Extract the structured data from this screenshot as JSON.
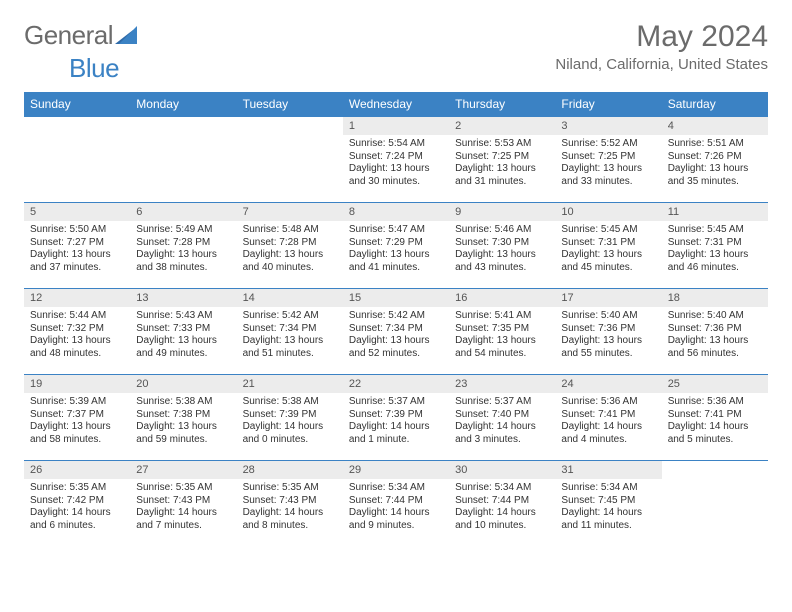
{
  "brand": {
    "word1": "General",
    "word2": "Blue"
  },
  "title": "May 2024",
  "location": "Niland, California, United States",
  "colors": {
    "header_bg": "#3b82c4",
    "header_fg": "#ffffff",
    "daynum_bg": "#ececec",
    "border": "#3b82c4",
    "title_color": "#6b6b6b"
  },
  "weekdays": [
    "Sunday",
    "Monday",
    "Tuesday",
    "Wednesday",
    "Thursday",
    "Friday",
    "Saturday"
  ],
  "weeks": [
    [
      {
        "n": "",
        "lines": []
      },
      {
        "n": "",
        "lines": []
      },
      {
        "n": "",
        "lines": []
      },
      {
        "n": "1",
        "lines": [
          "Sunrise: 5:54 AM",
          "Sunset: 7:24 PM",
          "Daylight: 13 hours",
          "and 30 minutes."
        ]
      },
      {
        "n": "2",
        "lines": [
          "Sunrise: 5:53 AM",
          "Sunset: 7:25 PM",
          "Daylight: 13 hours",
          "and 31 minutes."
        ]
      },
      {
        "n": "3",
        "lines": [
          "Sunrise: 5:52 AM",
          "Sunset: 7:25 PM",
          "Daylight: 13 hours",
          "and 33 minutes."
        ]
      },
      {
        "n": "4",
        "lines": [
          "Sunrise: 5:51 AM",
          "Sunset: 7:26 PM",
          "Daylight: 13 hours",
          "and 35 minutes."
        ]
      }
    ],
    [
      {
        "n": "5",
        "lines": [
          "Sunrise: 5:50 AM",
          "Sunset: 7:27 PM",
          "Daylight: 13 hours",
          "and 37 minutes."
        ]
      },
      {
        "n": "6",
        "lines": [
          "Sunrise: 5:49 AM",
          "Sunset: 7:28 PM",
          "Daylight: 13 hours",
          "and 38 minutes."
        ]
      },
      {
        "n": "7",
        "lines": [
          "Sunrise: 5:48 AM",
          "Sunset: 7:28 PM",
          "Daylight: 13 hours",
          "and 40 minutes."
        ]
      },
      {
        "n": "8",
        "lines": [
          "Sunrise: 5:47 AM",
          "Sunset: 7:29 PM",
          "Daylight: 13 hours",
          "and 41 minutes."
        ]
      },
      {
        "n": "9",
        "lines": [
          "Sunrise: 5:46 AM",
          "Sunset: 7:30 PM",
          "Daylight: 13 hours",
          "and 43 minutes."
        ]
      },
      {
        "n": "10",
        "lines": [
          "Sunrise: 5:45 AM",
          "Sunset: 7:31 PM",
          "Daylight: 13 hours",
          "and 45 minutes."
        ]
      },
      {
        "n": "11",
        "lines": [
          "Sunrise: 5:45 AM",
          "Sunset: 7:31 PM",
          "Daylight: 13 hours",
          "and 46 minutes."
        ]
      }
    ],
    [
      {
        "n": "12",
        "lines": [
          "Sunrise: 5:44 AM",
          "Sunset: 7:32 PM",
          "Daylight: 13 hours",
          "and 48 minutes."
        ]
      },
      {
        "n": "13",
        "lines": [
          "Sunrise: 5:43 AM",
          "Sunset: 7:33 PM",
          "Daylight: 13 hours",
          "and 49 minutes."
        ]
      },
      {
        "n": "14",
        "lines": [
          "Sunrise: 5:42 AM",
          "Sunset: 7:34 PM",
          "Daylight: 13 hours",
          "and 51 minutes."
        ]
      },
      {
        "n": "15",
        "lines": [
          "Sunrise: 5:42 AM",
          "Sunset: 7:34 PM",
          "Daylight: 13 hours",
          "and 52 minutes."
        ]
      },
      {
        "n": "16",
        "lines": [
          "Sunrise: 5:41 AM",
          "Sunset: 7:35 PM",
          "Daylight: 13 hours",
          "and 54 minutes."
        ]
      },
      {
        "n": "17",
        "lines": [
          "Sunrise: 5:40 AM",
          "Sunset: 7:36 PM",
          "Daylight: 13 hours",
          "and 55 minutes."
        ]
      },
      {
        "n": "18",
        "lines": [
          "Sunrise: 5:40 AM",
          "Sunset: 7:36 PM",
          "Daylight: 13 hours",
          "and 56 minutes."
        ]
      }
    ],
    [
      {
        "n": "19",
        "lines": [
          "Sunrise: 5:39 AM",
          "Sunset: 7:37 PM",
          "Daylight: 13 hours",
          "and 58 minutes."
        ]
      },
      {
        "n": "20",
        "lines": [
          "Sunrise: 5:38 AM",
          "Sunset: 7:38 PM",
          "Daylight: 13 hours",
          "and 59 minutes."
        ]
      },
      {
        "n": "21",
        "lines": [
          "Sunrise: 5:38 AM",
          "Sunset: 7:39 PM",
          "Daylight: 14 hours",
          "and 0 minutes."
        ]
      },
      {
        "n": "22",
        "lines": [
          "Sunrise: 5:37 AM",
          "Sunset: 7:39 PM",
          "Daylight: 14 hours",
          "and 1 minute."
        ]
      },
      {
        "n": "23",
        "lines": [
          "Sunrise: 5:37 AM",
          "Sunset: 7:40 PM",
          "Daylight: 14 hours",
          "and 3 minutes."
        ]
      },
      {
        "n": "24",
        "lines": [
          "Sunrise: 5:36 AM",
          "Sunset: 7:41 PM",
          "Daylight: 14 hours",
          "and 4 minutes."
        ]
      },
      {
        "n": "25",
        "lines": [
          "Sunrise: 5:36 AM",
          "Sunset: 7:41 PM",
          "Daylight: 14 hours",
          "and 5 minutes."
        ]
      }
    ],
    [
      {
        "n": "26",
        "lines": [
          "Sunrise: 5:35 AM",
          "Sunset: 7:42 PM",
          "Daylight: 14 hours",
          "and 6 minutes."
        ]
      },
      {
        "n": "27",
        "lines": [
          "Sunrise: 5:35 AM",
          "Sunset: 7:43 PM",
          "Daylight: 14 hours",
          "and 7 minutes."
        ]
      },
      {
        "n": "28",
        "lines": [
          "Sunrise: 5:35 AM",
          "Sunset: 7:43 PM",
          "Daylight: 14 hours",
          "and 8 minutes."
        ]
      },
      {
        "n": "29",
        "lines": [
          "Sunrise: 5:34 AM",
          "Sunset: 7:44 PM",
          "Daylight: 14 hours",
          "and 9 minutes."
        ]
      },
      {
        "n": "30",
        "lines": [
          "Sunrise: 5:34 AM",
          "Sunset: 7:44 PM",
          "Daylight: 14 hours",
          "and 10 minutes."
        ]
      },
      {
        "n": "31",
        "lines": [
          "Sunrise: 5:34 AM",
          "Sunset: 7:45 PM",
          "Daylight: 14 hours",
          "and 11 minutes."
        ]
      },
      {
        "n": "",
        "lines": []
      }
    ]
  ]
}
